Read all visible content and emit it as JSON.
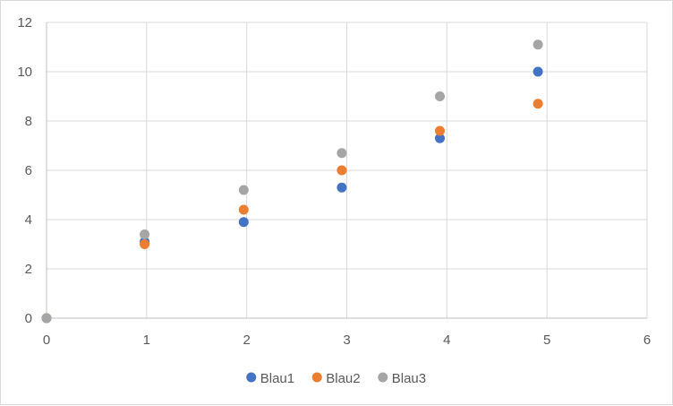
{
  "chart_data": {
    "type": "scatter",
    "title": "",
    "xlabel": "",
    "ylabel": "",
    "xlim": [
      0,
      6
    ],
    "ylim": [
      0,
      12
    ],
    "x_ticks": [
      0,
      1,
      2,
      3,
      4,
      5,
      6
    ],
    "y_ticks": [
      0,
      2,
      4,
      6,
      8,
      10,
      12
    ],
    "grid": true,
    "legend_position": "bottom",
    "series": [
      {
        "name": "Blau1",
        "color": "#4472C4",
        "points": [
          [
            0,
            0
          ],
          [
            0.98,
            3.1
          ],
          [
            1.97,
            3.9
          ],
          [
            2.95,
            5.3
          ],
          [
            3.93,
            7.3
          ],
          [
            4.91,
            10.0
          ]
        ]
      },
      {
        "name": "Blau2",
        "color": "#ED7D31",
        "points": [
          [
            0,
            0
          ],
          [
            0.98,
            3.0
          ],
          [
            1.97,
            4.4
          ],
          [
            2.95,
            6.0
          ],
          [
            3.93,
            7.6
          ],
          [
            4.91,
            8.7
          ]
        ]
      },
      {
        "name": "Blau3",
        "color": "#A5A5A5",
        "points": [
          [
            0,
            0
          ],
          [
            0.98,
            3.4
          ],
          [
            1.97,
            5.2
          ],
          [
            2.95,
            6.7
          ],
          [
            3.93,
            9.0
          ],
          [
            4.91,
            11.1
          ]
        ]
      }
    ]
  }
}
